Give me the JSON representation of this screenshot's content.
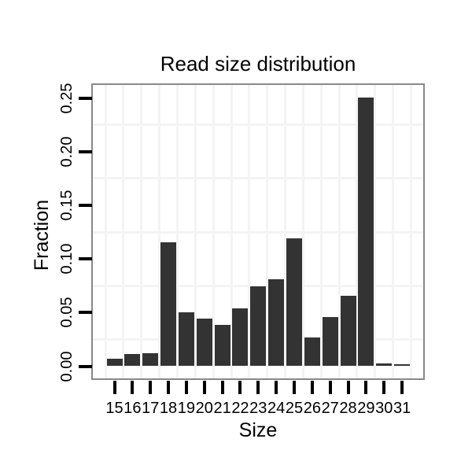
{
  "chart_data": {
    "type": "bar",
    "title": "Read size distribution",
    "xlabel": "Size",
    "ylabel": "Fraction",
    "categories": [
      "15",
      "16",
      "17",
      "18",
      "19",
      "20",
      "21",
      "22",
      "23",
      "24",
      "25",
      "26",
      "27",
      "28",
      "29",
      "30",
      "31"
    ],
    "values": [
      0.007,
      0.0114,
      0.0121,
      0.1153,
      0.0504,
      0.0444,
      0.0383,
      0.0537,
      0.0742,
      0.081,
      0.1194,
      0.0268,
      0.046,
      0.0658,
      0.2502,
      0.0022,
      0.0018
    ],
    "y_tick_values": [
      0.0,
      0.05,
      0.1,
      0.15,
      0.2,
      0.25
    ],
    "y_tick_labels": [
      "0.00",
      "0.05",
      "0.10",
      "0.15",
      "0.20",
      "0.25"
    ],
    "minor_gridline_values": [
      0.025,
      0.075,
      0.125,
      0.175,
      0.225
    ],
    "ylim": [
      0,
      0.262
    ],
    "grid": "minor-only",
    "legend": "none",
    "colors": {
      "bar": "#333333",
      "panel_border": "#888888",
      "gridline": "#f4f4f4",
      "background": "#ffffff",
      "text": "#000000"
    }
  }
}
